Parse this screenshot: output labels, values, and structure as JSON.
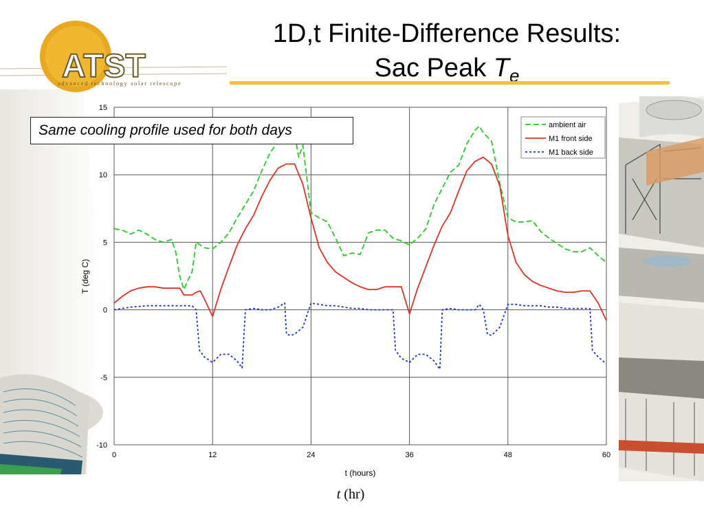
{
  "slide": {
    "title_line1": "1D,t Finite-Difference Results:",
    "title_line2": "Sac Peak",
    "title_var": "T",
    "title_sub": "e",
    "callout": "Same cooling profile used for both days",
    "bottom_label_var": "t",
    "bottom_label_unit": "(hr)"
  },
  "logo": {
    "text": "ATST",
    "tagline": "advanced technology solar telescope",
    "ring_color": "#e8a820",
    "text_color": "#6b5a2a"
  },
  "colors": {
    "accent_rule": "#f2c23a",
    "ambient": "#22cc22",
    "front": "#e03020",
    "back": "#1a33cc"
  },
  "chart_data": {
    "type": "line",
    "xlabel": "t (hours)",
    "ylabel": "T (deg C)",
    "xlim": [
      0,
      60
    ],
    "ylim": [
      -10,
      15
    ],
    "x_ticks": [
      0,
      12,
      24,
      36,
      48,
      60
    ],
    "y_ticks": [
      -10,
      -5,
      0,
      5,
      10,
      15
    ],
    "grid": "vertical and horizontal",
    "legend_position": "top-right",
    "legend": [
      "ambient air",
      "M1 front side",
      "M1 back side"
    ],
    "series": [
      {
        "name": "ambient air",
        "color": "#22cc22",
        "dash": "dashed",
        "x": [
          0,
          1,
          2,
          3,
          4,
          5,
          6,
          6.5,
          7,
          7.5,
          8,
          8.5,
          9,
          9.5,
          10,
          11,
          12,
          13,
          14,
          15,
          16,
          17,
          18,
          19,
          20,
          21,
          22,
          22.5,
          23,
          24,
          25,
          26,
          27,
          28,
          29,
          30,
          31,
          32,
          33,
          34,
          35,
          36,
          37,
          38,
          39,
          40,
          41,
          42,
          43,
          44,
          44.5,
          45,
          46,
          47,
          48,
          49,
          50,
          51,
          52,
          53,
          54,
          55,
          56,
          57,
          58,
          59,
          60
        ],
        "y": [
          6,
          5.9,
          5.6,
          5.9,
          5.6,
          5.2,
          5,
          5.1,
          5.2,
          4.3,
          2.5,
          1.5,
          2.2,
          2.8,
          5,
          4.6,
          4.5,
          5,
          5.7,
          6.8,
          7.8,
          8.8,
          10.3,
          11.6,
          12.5,
          13,
          13,
          11.3,
          12.2,
          7.2,
          6.8,
          6.5,
          5.3,
          4,
          4.2,
          4.1,
          5.7,
          5.9,
          5.9,
          5.3,
          5.1,
          4.8,
          5.3,
          6,
          7.8,
          9,
          10.2,
          10.7,
          12.3,
          13.3,
          13.6,
          13.1,
          12.5,
          9.4,
          6.8,
          6.5,
          6.5,
          6.6,
          5.8,
          5.3,
          4.9,
          4.5,
          4.3,
          4.3,
          4.6,
          4,
          3.5
        ]
      },
      {
        "name": "M1 front side",
        "color": "#e03020",
        "dash": "solid",
        "x": [
          0,
          1,
          2,
          3,
          4,
          5,
          6,
          7,
          8,
          8.5,
          9,
          9.5,
          10,
          10.5,
          11,
          12,
          13,
          14,
          15,
          16,
          17,
          18,
          19,
          20,
          21,
          22,
          23,
          24,
          25,
          26,
          27,
          28,
          29,
          30,
          31,
          32,
          33,
          34,
          35,
          36,
          37,
          38,
          39,
          40,
          41,
          42,
          43,
          44,
          45,
          46,
          47,
          48,
          49,
          50,
          51,
          52,
          53,
          54,
          55,
          56,
          57,
          58,
          59,
          60
        ],
        "y": [
          0.5,
          1,
          1.4,
          1.6,
          1.7,
          1.7,
          1.6,
          1.6,
          1.6,
          1.1,
          1.1,
          1.1,
          1.3,
          1.4,
          0.8,
          -0.5,
          1.5,
          3.2,
          4.8,
          6,
          7,
          8.4,
          9.6,
          10.5,
          10.8,
          10.8,
          9.3,
          6.8,
          4.6,
          3.5,
          2.8,
          2.4,
          2,
          1.7,
          1.5,
          1.5,
          1.7,
          1.7,
          1.7,
          -0.3,
          1.6,
          3.2,
          4.8,
          6.2,
          7.2,
          8.8,
          10.3,
          11,
          11.3,
          10.8,
          9.2,
          5.5,
          3.5,
          2.6,
          2.1,
          1.8,
          1.6,
          1.4,
          1.3,
          1.3,
          1.4,
          1.4,
          0.5,
          -0.8
        ]
      },
      {
        "name": "M1 back side",
        "color": "#1a33cc",
        "dash": "dotted",
        "x": [
          0,
          2,
          4,
          6,
          8,
          9.5,
          10,
          10.4,
          11,
          12,
          13,
          14,
          15,
          15.6,
          16,
          17,
          18,
          19,
          20,
          20.8,
          21,
          21.5,
          22,
          23,
          24,
          25,
          26,
          27,
          28,
          29,
          30,
          31,
          32,
          33,
          34,
          34.3,
          35,
          36,
          37,
          38,
          39,
          39.7,
          40,
          41,
          42,
          43,
          44,
          44.5,
          45,
          45.5,
          46,
          47,
          48,
          49,
          50,
          51,
          52,
          53,
          54,
          55,
          56,
          57,
          58,
          58.3,
          59,
          60
        ],
        "y": [
          0,
          0.2,
          0.3,
          0.3,
          0.3,
          0.3,
          0,
          -3,
          -3.5,
          -3.9,
          -3.3,
          -3.3,
          -3.8,
          -4.3,
          0,
          0.1,
          0,
          0,
          0.2,
          0.5,
          -1.8,
          -1.9,
          -1.8,
          -1.3,
          0.5,
          0.4,
          0.3,
          0.3,
          0.2,
          0.1,
          0.1,
          0,
          0,
          0,
          0,
          -3,
          -3.6,
          -3.9,
          -3.3,
          -3.3,
          -3.8,
          -4.4,
          0,
          0.1,
          0,
          0,
          0,
          0.4,
          0,
          -1.8,
          -1.9,
          -1.3,
          0.4,
          0.4,
          0.3,
          0.3,
          0.3,
          0.2,
          0.2,
          0.1,
          0.1,
          0.1,
          0.1,
          -3,
          -3.5,
          -4
        ]
      }
    ]
  }
}
